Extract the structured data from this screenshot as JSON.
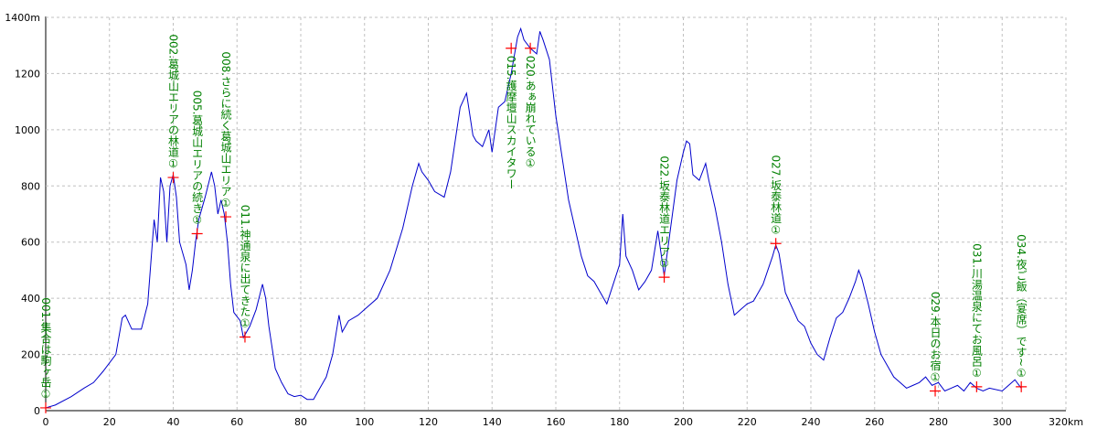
{
  "chart_data": {
    "type": "line",
    "x": [
      0,
      3,
      8,
      12,
      15,
      18,
      22,
      24,
      25,
      27,
      30,
      32,
      34,
      35,
      36,
      37,
      38,
      39,
      40,
      41,
      42,
      43,
      44,
      45,
      46,
      47,
      48,
      50,
      52,
      53,
      54,
      55,
      56,
      57,
      58,
      59,
      61,
      62,
      64,
      66,
      68,
      69,
      70,
      72,
      74,
      76,
      78,
      80,
      82,
      84,
      86,
      88,
      90,
      92,
      93,
      95,
      98,
      100,
      104,
      108,
      112,
      115,
      117,
      118,
      120,
      122,
      125,
      127,
      130,
      132,
      134,
      135,
      137,
      139,
      140,
      142,
      144,
      146,
      148,
      149,
      150,
      152,
      154,
      155,
      156,
      158,
      160,
      162,
      164,
      166,
      168,
      170,
      172,
      174,
      176,
      178,
      180,
      181,
      182,
      184,
      186,
      188,
      190,
      192,
      194,
      196,
      198,
      200,
      201,
      202,
      203,
      205,
      207,
      208,
      210,
      212,
      214,
      216,
      218,
      220,
      222,
      225,
      228,
      229,
      230,
      232,
      234,
      236,
      238,
      240,
      242,
      244,
      246,
      248,
      250,
      252,
      254,
      255,
      256,
      258,
      260,
      262,
      264,
      266,
      268,
      270,
      272,
      274,
      276,
      278,
      280,
      282,
      284,
      286,
      288,
      290,
      292,
      294,
      296,
      300,
      302,
      304,
      306
    ],
    "series": [
      {
        "color": "#0000cc",
        "values": [
          10,
          20,
          50,
          80,
          100,
          140,
          200,
          330,
          340,
          290,
          290,
          380,
          680,
          600,
          830,
          780,
          600,
          800,
          840,
          760,
          600,
          560,
          520,
          430,
          500,
          600,
          680,
          760,
          850,
          800,
          700,
          750,
          700,
          600,
          450,
          350,
          320,
          260,
          300,
          360,
          450,
          400,
          300,
          150,
          100,
          60,
          50,
          55,
          40,
          40,
          80,
          120,
          200,
          340,
          280,
          320,
          340,
          360,
          400,
          500,
          650,
          800,
          880,
          850,
          820,
          780,
          760,
          850,
          1080,
          1130,
          980,
          960,
          940,
          1000,
          920,
          1080,
          1100,
          1200,
          1330,
          1360,
          1320,
          1290,
          1270,
          1350,
          1320,
          1250,
          1050,
          900,
          750,
          650,
          550,
          480,
          460,
          420,
          380,
          450,
          520,
          700,
          550,
          500,
          430,
          460,
          500,
          640,
          480,
          650,
          820,
          920,
          960,
          950,
          840,
          820,
          880,
          820,
          720,
          600,
          450,
          340,
          360,
          380,
          390,
          450,
          550,
          590,
          560,
          420,
          370,
          320,
          300,
          240,
          200,
          180,
          260,
          330,
          350,
          400,
          460,
          500,
          470,
          380,
          280,
          200,
          160,
          120,
          100,
          80,
          90,
          100,
          120,
          90,
          100,
          70,
          80,
          90,
          70,
          100,
          80,
          70,
          80,
          70,
          90,
          110,
          80
        ]
      }
    ],
    "points": [
      {
        "x": 0,
        "y": 10,
        "label": "001.集合は駒ヶ岳①"
      },
      {
        "x": 40,
        "y": 830,
        "label": "002.葛城山エリアの林道①"
      },
      {
        "x": 47.5,
        "y": 630,
        "label": "005.葛城山エリアの続き①"
      },
      {
        "x": 56.5,
        "y": 690,
        "label": "008.さらに続く葛城山エリア①"
      },
      {
        "x": 62.5,
        "y": 262,
        "label": "011.神通泉に出てきた①"
      },
      {
        "x": 146,
        "y": 1290,
        "label": "015.護摩壇山スカイタワー"
      },
      {
        "x": 152,
        "y": 1290,
        "label": "020.あぁ崩れている①"
      },
      {
        "x": 194,
        "y": 475,
        "label": "022.坂泰林道エリア①"
      },
      {
        "x": 229,
        "y": 595,
        "label": "027.坂泰林道①"
      },
      {
        "x": 279,
        "y": 70,
        "label": "029.本日のお宿①"
      },
      {
        "x": 292,
        "y": 85,
        "label": "031.川湯温泉にてお風呂①"
      },
      {
        "x": 306,
        "y": 85,
        "label": "034.夜ご飯（宴席）です~①"
      }
    ],
    "marker_color": "#ff0000",
    "label_color": "#008000",
    "xlim": [
      0,
      320
    ],
    "ylim": [
      0,
      1400
    ],
    "xticks": [
      0,
      20,
      40,
      60,
      80,
      100,
      120,
      140,
      160,
      180,
      200,
      220,
      240,
      260,
      280,
      300,
      {
        "value": 320,
        "label": "320km"
      }
    ],
    "yticks": [
      0,
      200,
      400,
      600,
      800,
      1000,
      1200,
      {
        "value": 1400,
        "label": "1400m"
      }
    ],
    "grid": true
  }
}
